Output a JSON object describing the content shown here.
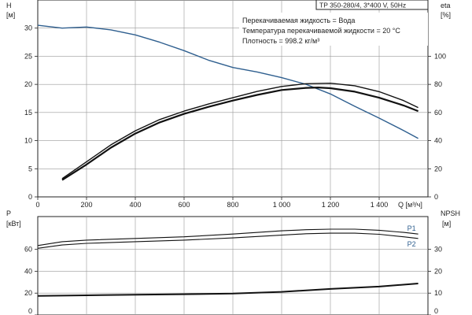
{
  "title": "TP 350-280/4, 3*400 V, 50Hz",
  "conditions": [
    "Перекачиваемая жидкость = Вода",
    "Температура перекачиваемой жидкости = 20 °C",
    "Плотность = 998.2 кг/м³"
  ],
  "chart_data": [
    {
      "type": "line",
      "title": "TP 350-280/4, 3*400 V, 50Hz",
      "xlabel": "Q [м³/ч]",
      "x_ticks": [
        "0",
        "200",
        "400",
        "600",
        "800",
        "1 000",
        "1 200",
        "1 400"
      ],
      "xlim": [
        0,
        1600
      ],
      "ylabel": "H [м]",
      "ylim": [
        0,
        35
      ],
      "y_ticks": [
        "0",
        "5",
        "10",
        "15",
        "20",
        "25",
        "30"
      ],
      "y2label": "eta [%]",
      "y2lim": [
        0,
        140
      ],
      "y2_ticks": [
        "0",
        "20",
        "40",
        "60",
        "80",
        "100"
      ],
      "grid": true,
      "series": [
        {
          "axis": "left",
          "color": "#2f5f8f",
          "x": [
            0,
            100,
            200,
            300,
            400,
            500,
            600,
            700,
            800,
            900,
            1000,
            1100,
            1200,
            1300,
            1400,
            1500,
            1560
          ],
          "values": [
            30.5,
            30.0,
            30.2,
            29.7,
            28.8,
            27.5,
            26.0,
            24.3,
            23.0,
            22.2,
            21.2,
            20.0,
            18.3,
            16.1,
            14.0,
            11.8,
            10.4
          ]
        },
        {
          "axis": "right",
          "color": "#111111",
          "x": [
            100,
            200,
            300,
            400,
            500,
            600,
            700,
            800,
            900,
            1000,
            1100,
            1150,
            1200,
            1300,
            1400,
            1500,
            1560
          ],
          "values": [
            12,
            23,
            35,
            45,
            53,
            59,
            64,
            68.5,
            72.5,
            76,
            77.5,
            77.8,
            77.3,
            74.8,
            70.5,
            65,
            61
          ]
        },
        {
          "axis": "right",
          "color": "#111111",
          "x": [
            100,
            200,
            300,
            400,
            500,
            600,
            700,
            800,
            900,
            1000,
            1100,
            1200,
            1300,
            1400,
            1500,
            1560
          ],
          "values": [
            13,
            25,
            37,
            47,
            55,
            61,
            66,
            70.5,
            75,
            78.5,
            80.5,
            80.8,
            79,
            74.8,
            68.5,
            63.5
          ]
        }
      ]
    },
    {
      "type": "line",
      "ylabel": "P [кВт]",
      "ylim": [
        0,
        90
      ],
      "y_ticks": [
        "0",
        "20",
        "40",
        "60"
      ],
      "y2label": "NPSH [м]",
      "y2lim": [
        0,
        45
      ],
      "y2_ticks": [
        "0",
        "10",
        "20",
        "30"
      ],
      "xlim": [
        0,
        1600
      ],
      "grid": true,
      "series": [
        {
          "name": "P1",
          "axis": "left",
          "color": "#111111",
          "x": [
            0,
            100,
            200,
            400,
            600,
            800,
            1000,
            1100,
            1200,
            1300,
            1400,
            1500,
            1560
          ],
          "values": [
            63.5,
            67,
            68.5,
            70,
            71.5,
            74,
            77,
            78,
            78.5,
            78.5,
            77.5,
            75.5,
            74
          ]
        },
        {
          "name": "P2",
          "axis": "left",
          "color": "#111111",
          "x": [
            0,
            100,
            200,
            400,
            600,
            800,
            1000,
            1100,
            1200,
            1300,
            1400,
            1500,
            1560
          ],
          "values": [
            61,
            64,
            65.5,
            67,
            68.5,
            70.5,
            73,
            74.3,
            74.8,
            74.8,
            73.8,
            71.5,
            70
          ]
        },
        {
          "axis": "right",
          "color": "#111111",
          "x": [
            0,
            200,
            400,
            600,
            800,
            1000,
            1200,
            1400,
            1560
          ],
          "values": [
            8.7,
            9.0,
            9.3,
            9.5,
            9.8,
            10.6,
            11.9,
            13.0,
            14.4
          ]
        }
      ]
    }
  ]
}
